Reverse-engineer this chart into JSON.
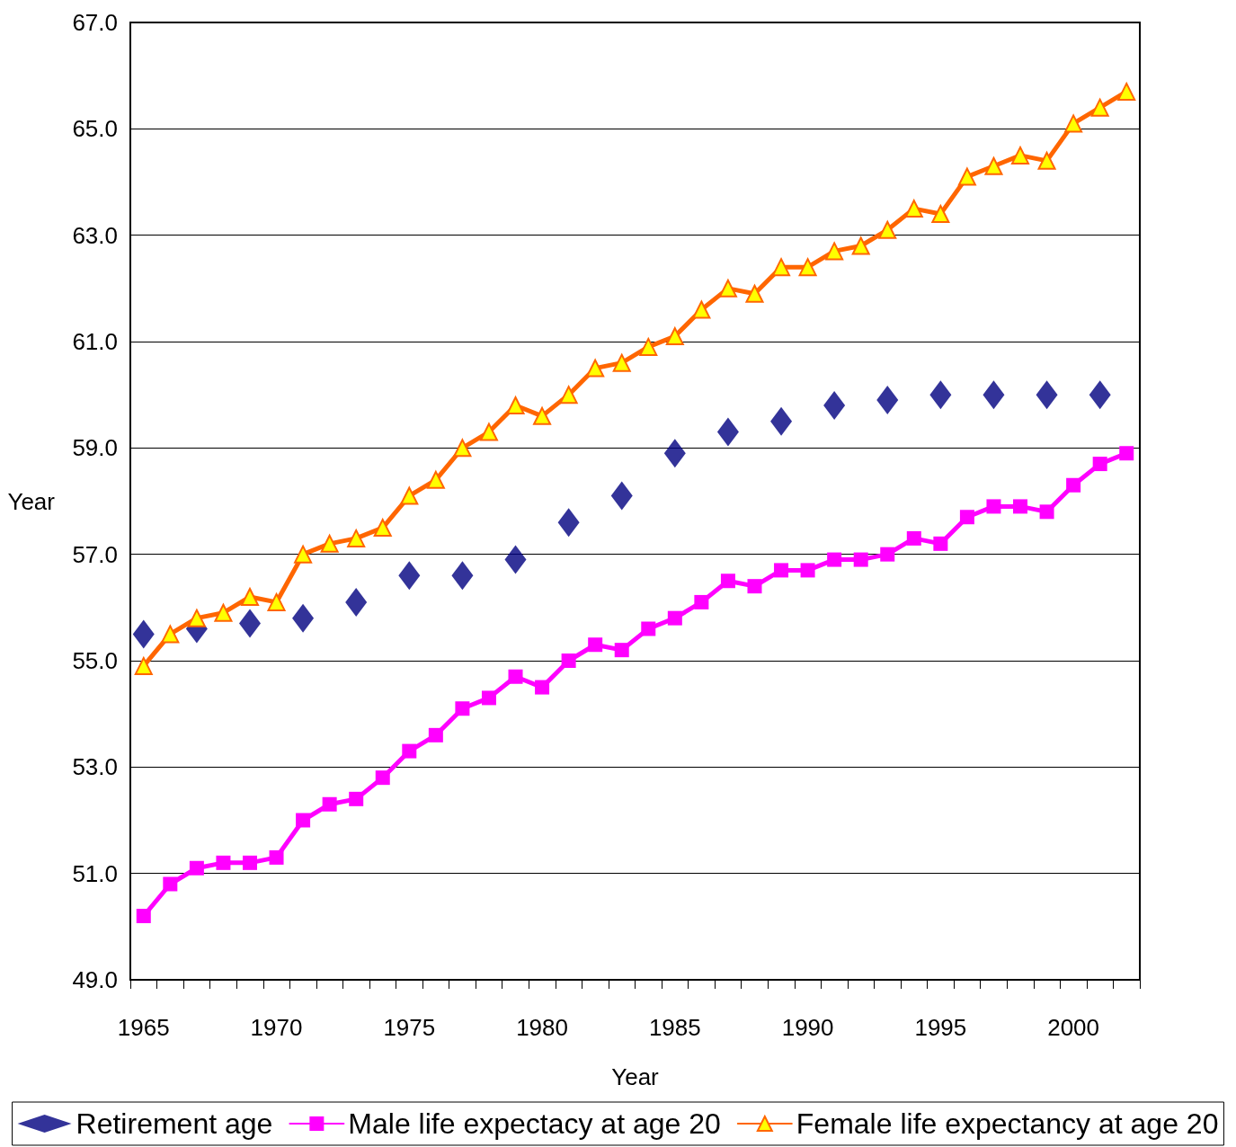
{
  "chart_data": {
    "type": "line",
    "xlabel": "Year",
    "ylabel": "Year",
    "categories": [
      "1965",
      null,
      null,
      null,
      null,
      "1970",
      null,
      null,
      null,
      null,
      "1975",
      null,
      null,
      null,
      null,
      "1980",
      null,
      null,
      null,
      null,
      "1985",
      null,
      null,
      null,
      null,
      "1990",
      null,
      null,
      null,
      null,
      "1995",
      null,
      null,
      null,
      null,
      "2000",
      null,
      null
    ],
    "series": [
      {
        "name": "Retirement age",
        "type": "scatter",
        "marker": "diamond",
        "color": "#000080",
        "values": [
          55.5,
          null,
          55.6,
          null,
          55.7,
          null,
          55.8,
          null,
          56.1,
          null,
          56.6,
          null,
          56.6,
          null,
          56.9,
          null,
          57.6,
          null,
          58.1,
          null,
          58.9,
          null,
          59.3,
          null,
          59.5,
          null,
          59.8,
          null,
          59.9,
          null,
          60.0,
          null,
          60.0,
          null,
          60.0,
          null,
          60.0,
          null
        ]
      },
      {
        "name": "Male life expectacy at age 20",
        "type": "line",
        "marker": "square",
        "color": "#ff00ff",
        "values": [
          50.2,
          50.8,
          51.1,
          51.2,
          51.2,
          51.3,
          52.0,
          52.3,
          52.4,
          52.8,
          53.3,
          53.6,
          54.1,
          54.3,
          54.7,
          54.5,
          55.0,
          55.3,
          55.2,
          55.6,
          55.8,
          56.1,
          56.5,
          56.4,
          56.7,
          56.7,
          56.9,
          56.9,
          57.0,
          57.3,
          57.2,
          57.7,
          57.9,
          57.9,
          57.8,
          58.3,
          58.7,
          58.9
        ]
      },
      {
        "name": "Female life expectancy at age 20",
        "type": "line",
        "marker": "triangle",
        "color": "#ff6600",
        "values": [
          54.9,
          55.5,
          55.8,
          55.9,
          56.2,
          56.1,
          57.0,
          57.2,
          57.3,
          57.5,
          58.1,
          58.4,
          59.0,
          59.3,
          59.8,
          59.6,
          60.0,
          60.5,
          60.6,
          60.9,
          61.1,
          61.6,
          62.0,
          61.9,
          62.4,
          62.4,
          62.7,
          62.8,
          63.1,
          63.5,
          63.4,
          64.1,
          64.3,
          64.5,
          64.4,
          65.1,
          65.4,
          65.7
        ]
      }
    ],
    "ylim": [
      49,
      67
    ],
    "yticks": [
      {
        "value": 49,
        "label": "49.0"
      },
      {
        "value": 51,
        "label": "51.0"
      },
      {
        "value": 53,
        "label": "53.0"
      },
      {
        "value": 55,
        "label": "55.0"
      },
      {
        "value": 57,
        "label": "57.0"
      },
      {
        "value": 59,
        "label": "59.0"
      },
      {
        "value": 61,
        "label": "61.0"
      },
      {
        "value": 63,
        "label": "63.0"
      },
      {
        "value": 65,
        "label": "65.0"
      },
      {
        "value": 67,
        "label": "67.0"
      }
    ],
    "grid": "y",
    "legend": "bottom"
  }
}
